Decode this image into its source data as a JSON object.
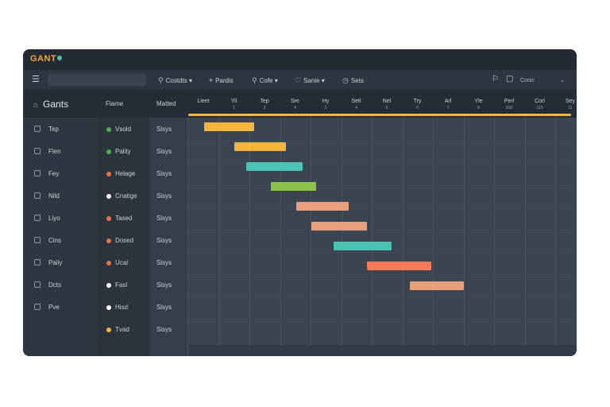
{
  "app": {
    "logo": "GANT"
  },
  "toolbar": {
    "buttons": [
      {
        "icon": "search-icon",
        "glyph": "⚲",
        "label": "Costdts ▾"
      },
      {
        "icon": "pin-icon",
        "glyph": "⌖",
        "label": "Pardis"
      },
      {
        "icon": "search-icon",
        "glyph": "⚲",
        "label": "Cofe ▾"
      },
      {
        "icon": "heart-icon",
        "glyph": "♡",
        "label": "Sanie ▾"
      },
      {
        "icon": "clock-icon",
        "glyph": "◷",
        "label": "Sets"
      }
    ],
    "right": {
      "label": "Conic"
    }
  },
  "sidebar": {
    "title": "Gants"
  },
  "columns": {
    "name": "Flame",
    "duration": "Matted"
  },
  "days": [
    {
      "label": "Lieet",
      "sub": ""
    },
    {
      "label": "Yil",
      "sub": "1"
    },
    {
      "label": "Tep",
      "sub": "2"
    },
    {
      "label": "Sre",
      "sub": "4"
    },
    {
      "label": "Hy",
      "sub": "3"
    },
    {
      "label": "Setl",
      "sub": "4"
    },
    {
      "label": "Nel",
      "sub": "5"
    },
    {
      "label": "Try",
      "sub": "6"
    },
    {
      "label": "Arl",
      "sub": "7"
    },
    {
      "label": "Yle",
      "sub": "8"
    },
    {
      "label": "Perl",
      "sub": "910"
    },
    {
      "label": "Corl",
      "sub": "110"
    },
    {
      "label": "Sey",
      "sub": "11"
    }
  ],
  "rows": [
    {
      "group": "Tep",
      "name": "Vsold",
      "dot": "#4caf50",
      "duration": "Sisys"
    },
    {
      "group": "Flen",
      "name": "Pality",
      "dot": "#4caf50",
      "duration": "Sisys"
    },
    {
      "group": "Fey",
      "name": "Helage",
      "dot": "#e8734a",
      "duration": "Sisys"
    },
    {
      "group": "Nild",
      "name": "Cnatige",
      "dot": "#ffffff",
      "duration": "Sisys"
    },
    {
      "group": "Liyo",
      "name": "Tased",
      "dot": "#e8734a",
      "duration": "Sisys"
    },
    {
      "group": "Cins",
      "name": "Dosed",
      "dot": "#e8734a",
      "duration": "Sisys"
    },
    {
      "group": "Paily",
      "name": "Ucal",
      "dot": "#e8734a",
      "duration": "Sisys"
    },
    {
      "group": "Dcts",
      "name": "Fasl",
      "dot": "#ffffff",
      "duration": "Sisys"
    },
    {
      "group": "Pve",
      "name": "Hisd",
      "dot": "#ffffff",
      "duration": "Sisys"
    },
    {
      "group": "",
      "name": "Tvad",
      "dot": "#f4b63c",
      "duration": "Sisys"
    }
  ],
  "tasks": [
    {
      "start": 0.42,
      "end": 2.1,
      "color": "#f4b63c"
    },
    {
      "start": 1.42,
      "end": 3.15,
      "color": "#f4b63c"
    },
    {
      "start": 1.82,
      "end": 3.7,
      "color": "#4cc2b5"
    },
    {
      "start": 2.65,
      "end": 4.15,
      "color": "#8bc34a"
    },
    {
      "start": 3.5,
      "end": 5.25,
      "color": "#e8a07a"
    },
    {
      "start": 4.0,
      "end": 5.85,
      "color": "#e8a07a"
    },
    {
      "start": 4.75,
      "end": 6.67,
      "color": "#4cc2b5"
    },
    {
      "start": 5.85,
      "end": 8.0,
      "color": "#f47a5a"
    },
    {
      "start": 7.3,
      "end": 9.1,
      "color": "#e8a07a"
    }
  ]
}
